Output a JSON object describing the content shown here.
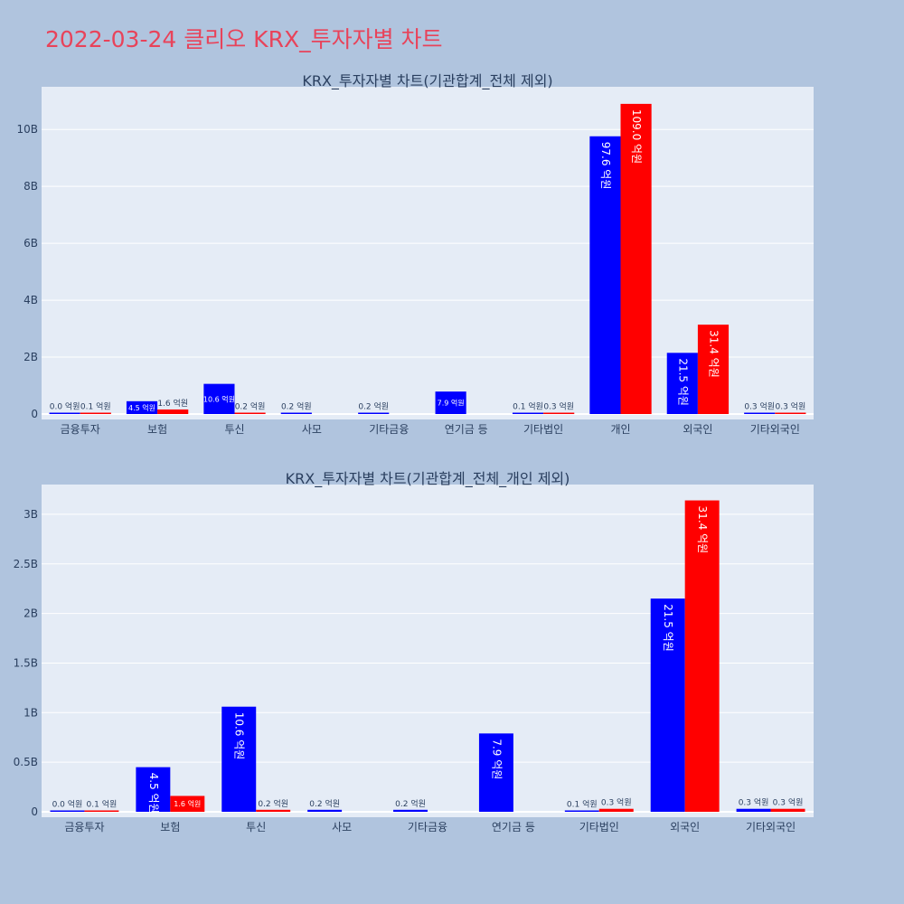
{
  "page": {
    "title": "2022-03-24 클리오 KRX_투자자별 차트"
  },
  "colors": {
    "background": "#b0c4de",
    "plot_bg": "#e5ecf6",
    "series_1": "#0000ff",
    "series_2": "#ff0000",
    "title": "#e8435a",
    "text": "#2a3f5f"
  },
  "chart_data": [
    {
      "type": "bar",
      "title": "KRX_투자자별 차트(기관합계_전체 제외)",
      "categories": [
        "금융투자",
        "보험",
        "투신",
        "사모",
        "기타금융",
        "연기금 등",
        "기타법인",
        "개인",
        "외국인",
        "기타외국인"
      ],
      "series": [
        {
          "values": [
            0.0,
            0.45,
            1.06,
            0.02,
            0.02,
            0.79,
            0.01,
            9.76,
            2.15,
            0.03
          ],
          "labels": [
            "0.0 억원",
            "4.5 억원",
            "10.6 억원",
            "0.2 억원",
            "0.2 억원",
            "7.9 억원",
            "0.1 억원",
            "97.6 억원",
            "21.5 억원",
            "0.3 억원"
          ]
        },
        {
          "values": [
            0.01,
            0.16,
            0.02,
            null,
            null,
            null,
            0.03,
            10.9,
            3.14,
            0.03
          ],
          "labels": [
            "0.1 억원",
            "1.6 억원",
            "0.2 억원",
            "",
            "",
            "",
            "0.3 억원",
            "109.0 억원",
            "31.4 억원",
            "0.3 억원"
          ]
        }
      ],
      "yunit": "B",
      "ylim": [
        0,
        11.5
      ],
      "yticks": [
        0,
        2,
        4,
        6,
        8,
        10
      ],
      "ytick_labels": [
        "0",
        "2B",
        "4B",
        "6B",
        "8B",
        "10B"
      ],
      "grid": true
    },
    {
      "type": "bar",
      "title": "KRX_투자자별 차트(기관합계_전체_개인 제외)",
      "categories": [
        "금융투자",
        "보험",
        "투신",
        "사모",
        "기타금융",
        "연기금 등",
        "기타법인",
        "외국인",
        "기타외국인"
      ],
      "series": [
        {
          "values": [
            0.0,
            0.45,
            1.06,
            0.02,
            0.02,
            0.79,
            0.01,
            2.15,
            0.03
          ],
          "labels": [
            "0.0 억원",
            "4.5 억원",
            "10.6 억원",
            "0.2 억원",
            "0.2 억원",
            "7.9 억원",
            "0.1 억원",
            "21.5 억원",
            "0.3 억원"
          ]
        },
        {
          "values": [
            0.01,
            0.16,
            0.02,
            null,
            null,
            null,
            0.03,
            3.14,
            0.03
          ],
          "labels": [
            "0.1 억원",
            "1.6 억원",
            "0.2 억원",
            "",
            "",
            "",
            "0.3 억원",
            "31.4 억원",
            "0.3 억원"
          ]
        }
      ],
      "yunit": "B",
      "ylim": [
        0,
        3.3
      ],
      "yticks": [
        0,
        0.5,
        1,
        1.5,
        2,
        2.5,
        3
      ],
      "ytick_labels": [
        "0",
        "0.5B",
        "1B",
        "1.5B",
        "2B",
        "2.5B",
        "3B"
      ],
      "grid": true
    }
  ]
}
